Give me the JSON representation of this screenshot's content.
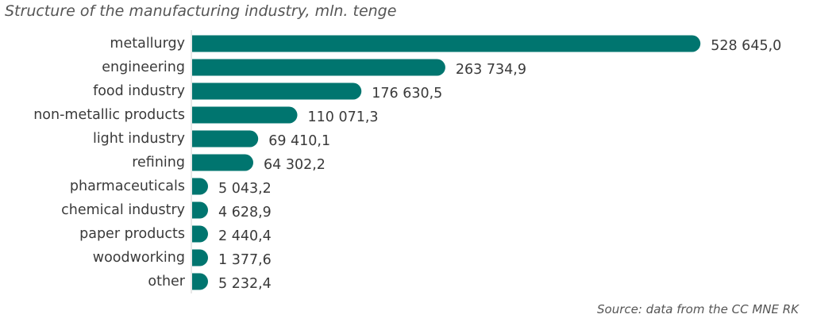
{
  "chart_data": {
    "type": "bar",
    "orientation": "horizontal",
    "title": "Structure of the manufacturing industry, mln. tenge",
    "source": "Source: data from the CC MNE RK",
    "categories": [
      "metallurgy",
      "engineering",
      "food industry",
      "non-metallic products",
      "light industry",
      "refining",
      "pharmaceuticals",
      "chemical industry",
      "paper products",
      "woodworking",
      "other"
    ],
    "values": [
      528645.0,
      263734.9,
      176630.5,
      110071.3,
      69410.1,
      64302.2,
      5043.2,
      4628.9,
      2440.4,
      1377.6,
      5232.4
    ],
    "value_labels": [
      "528 645,0",
      "263 734,9",
      "176 630,5",
      "110 071,3",
      "69 410,1",
      "64 302,2",
      "5 043,2",
      "4 628,9",
      "2 440,4",
      "1 377,6",
      "5 232,4"
    ],
    "bar_color": "#00756f",
    "grid": false,
    "legend": "none"
  }
}
